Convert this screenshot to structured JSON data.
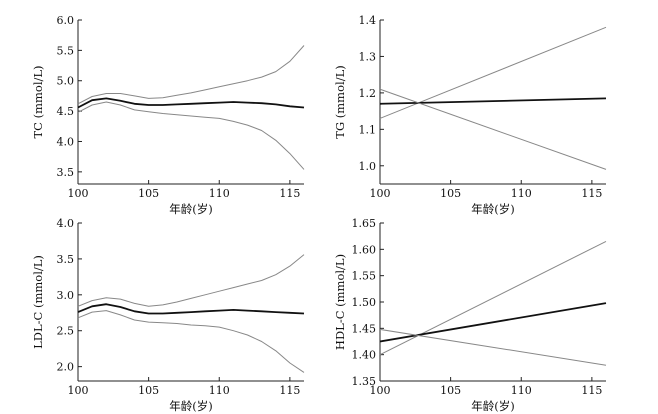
{
  "chart_data": [
    {
      "type": "line",
      "xlabel": "年龄(岁)",
      "ylabel": "TC (mmol/L)",
      "xlim": [
        100,
        116
      ],
      "ylim": [
        3.3,
        6.0
      ],
      "xticks": [
        100,
        105,
        110,
        115
      ],
      "xtick_labels": [
        "100",
        "105",
        "110",
        "115"
      ],
      "yticks": [
        3.5,
        4.0,
        4.5,
        5.0,
        5.5,
        6.0
      ],
      "ytick_labels": [
        "3.5",
        "4.0",
        "4.5",
        "5.0",
        "5.5",
        "6.0"
      ],
      "grid": false,
      "series": [
        {
          "role": "upper",
          "color": "#888888",
          "x": [
            100,
            101,
            102,
            103,
            104,
            105,
            106,
            107,
            108,
            109,
            110,
            111,
            112,
            113,
            114,
            115,
            116
          ],
          "y": [
            4.62,
            4.74,
            4.79,
            4.79,
            4.75,
            4.71,
            4.72,
            4.76,
            4.8,
            4.85,
            4.9,
            4.95,
            5.0,
            5.06,
            5.15,
            5.32,
            5.58
          ]
        },
        {
          "role": "estimate",
          "color": "#111111",
          "x": [
            100,
            101,
            102,
            103,
            104,
            105,
            106,
            107,
            108,
            109,
            110,
            111,
            112,
            113,
            114,
            115,
            116
          ],
          "y": [
            4.56,
            4.68,
            4.71,
            4.67,
            4.62,
            4.6,
            4.6,
            4.61,
            4.62,
            4.63,
            4.64,
            4.65,
            4.64,
            4.63,
            4.61,
            4.58,
            4.56
          ]
        },
        {
          "role": "lower",
          "color": "#888888",
          "x": [
            100,
            101,
            102,
            103,
            104,
            105,
            106,
            107,
            108,
            109,
            110,
            111,
            112,
            113,
            114,
            115,
            116
          ],
          "y": [
            4.48,
            4.6,
            4.65,
            4.6,
            4.52,
            4.49,
            4.46,
            4.44,
            4.42,
            4.4,
            4.38,
            4.33,
            4.27,
            4.18,
            4.02,
            3.8,
            3.54
          ]
        }
      ]
    },
    {
      "type": "line",
      "xlabel": "年龄(岁)",
      "ylabel": "TG (mmol/L)",
      "xlim": [
        100,
        116
      ],
      "ylim": [
        0.95,
        1.4
      ],
      "xticks": [
        100,
        105,
        110,
        115
      ],
      "xtick_labels": [
        "100",
        "105",
        "110",
        "115"
      ],
      "yticks": [
        1.0,
        1.1,
        1.2,
        1.3,
        1.4
      ],
      "ytick_labels": [
        "1.0",
        "1.1",
        "1.2",
        "1.3",
        "1.4"
      ],
      "grid": false,
      "series": [
        {
          "role": "upper",
          "color": "#888888",
          "x": [
            100,
            116
          ],
          "y": [
            1.13,
            1.38
          ]
        },
        {
          "role": "estimate",
          "color": "#111111",
          "x": [
            100,
            116
          ],
          "y": [
            1.17,
            1.185
          ]
        },
        {
          "role": "lower",
          "color": "#888888",
          "x": [
            100,
            116
          ],
          "y": [
            1.21,
            0.99
          ]
        }
      ]
    },
    {
      "type": "line",
      "xlabel": "年龄(岁)",
      "ylabel": "LDL-C (mmol/L)",
      "xlim": [
        100,
        116
      ],
      "ylim": [
        1.8,
        4.0
      ],
      "xticks": [
        100,
        105,
        110,
        115
      ],
      "xtick_labels": [
        "100",
        "105",
        "110",
        "115"
      ],
      "yticks": [
        2.0,
        2.5,
        3.0,
        3.5,
        4.0
      ],
      "ytick_labels": [
        "2.0",
        "2.5",
        "3.0",
        "3.5",
        "4.0"
      ],
      "grid": false,
      "series": [
        {
          "role": "upper",
          "color": "#888888",
          "x": [
            100,
            101,
            102,
            103,
            104,
            105,
            106,
            107,
            108,
            109,
            110,
            111,
            112,
            113,
            114,
            115,
            116
          ],
          "y": [
            2.84,
            2.92,
            2.96,
            2.94,
            2.88,
            2.84,
            2.86,
            2.9,
            2.95,
            3.0,
            3.05,
            3.1,
            3.15,
            3.2,
            3.28,
            3.4,
            3.56
          ]
        },
        {
          "role": "estimate",
          "color": "#111111",
          "x": [
            100,
            101,
            102,
            103,
            104,
            105,
            106,
            107,
            108,
            109,
            110,
            111,
            112,
            113,
            114,
            115,
            116
          ],
          "y": [
            2.76,
            2.84,
            2.87,
            2.83,
            2.77,
            2.74,
            2.74,
            2.75,
            2.76,
            2.77,
            2.78,
            2.79,
            2.78,
            2.77,
            2.76,
            2.75,
            2.74
          ]
        },
        {
          "role": "lower",
          "color": "#888888",
          "x": [
            100,
            101,
            102,
            103,
            104,
            105,
            106,
            107,
            108,
            109,
            110,
            111,
            112,
            113,
            114,
            115,
            116
          ],
          "y": [
            2.68,
            2.76,
            2.78,
            2.72,
            2.65,
            2.62,
            2.61,
            2.6,
            2.58,
            2.57,
            2.55,
            2.5,
            2.44,
            2.35,
            2.22,
            2.05,
            1.92
          ]
        }
      ]
    },
    {
      "type": "line",
      "xlabel": "年龄(岁)",
      "ylabel": "HDL-C (mmol/L)",
      "xlim": [
        100,
        116
      ],
      "ylim": [
        1.35,
        1.65
      ],
      "xticks": [
        100,
        105,
        110,
        115
      ],
      "xtick_labels": [
        "100",
        "105",
        "110",
        "115"
      ],
      "yticks": [
        1.35,
        1.4,
        1.45,
        1.5,
        1.55,
        1.6,
        1.65
      ],
      "ytick_labels": [
        "1.35",
        "1.40",
        "1.45",
        "1.50",
        "1.55",
        "1.60",
        "1.65"
      ],
      "grid": false,
      "series": [
        {
          "role": "upper",
          "color": "#888888",
          "x": [
            100,
            116
          ],
          "y": [
            1.4,
            1.615
          ]
        },
        {
          "role": "estimate",
          "color": "#111111",
          "x": [
            100,
            116
          ],
          "y": [
            1.425,
            1.498
          ]
        },
        {
          "role": "lower",
          "color": "#888888",
          "x": [
            100,
            116
          ],
          "y": [
            1.448,
            1.38
          ]
        }
      ]
    }
  ]
}
